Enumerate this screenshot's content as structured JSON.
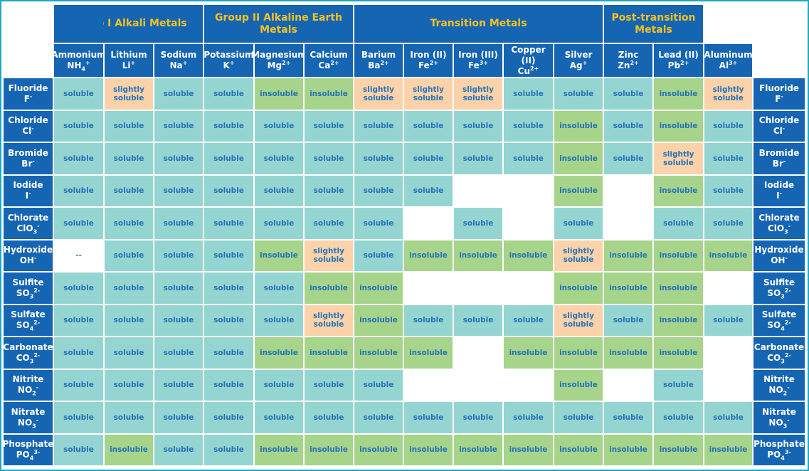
{
  "groups": [
    {
      "label": "Group I Alkali Metals",
      "span": [
        1,
        3
      ]
    },
    {
      "label": "Group II Alkaline Earth Metals",
      "span": [
        4,
        6
      ]
    },
    {
      "label": "Transition Metals",
      "span": [
        7,
        11
      ]
    },
    {
      "label": "Post-transition Metals",
      "span": [
        12,
        13
      ]
    }
  ],
  "cations": [
    {
      "name": "Ammonium",
      "sym": "NH",
      "sub": "4",
      "sup": "+"
    },
    {
      "name": "Lithium",
      "sym": "Li",
      "sub": "",
      "sup": "+"
    },
    {
      "name": "Sodium",
      "sym": "Na",
      "sub": "",
      "sup": "+"
    },
    {
      "name": "Potassium",
      "sym": "K",
      "sub": "",
      "sup": "+"
    },
    {
      "name": "Magnesium",
      "sym": "Mg",
      "sub": "",
      "sup": "2+"
    },
    {
      "name": "Calcium",
      "sym": "Ca",
      "sub": "",
      "sup": "2+"
    },
    {
      "name": "Barium",
      "sym": "Ba",
      "sub": "",
      "sup": "2+"
    },
    {
      "name": "Iron (II)",
      "sym": "Fe",
      "sub": "",
      "sup": "2+"
    },
    {
      "name": "Iron (III)",
      "sym": "Fe",
      "sub": "",
      "sup": "3+"
    },
    {
      "name": "Copper (II)",
      "sym": "Cu",
      "sub": "",
      "sup": "2+"
    },
    {
      "name": "Silver",
      "sym": "Ag",
      "sub": "",
      "sup": "+"
    },
    {
      "name": "Zinc",
      "sym": "Zn",
      "sub": "",
      "sup": "2+"
    },
    {
      "name": "Lead (II)",
      "sym": "Pb",
      "sub": "",
      "sup": "2+"
    },
    {
      "name": "Aluminum",
      "sym": "Al",
      "sub": "",
      "sup": "3+"
    }
  ],
  "anions": [
    {
      "name": "Fluoride",
      "sym": "F",
      "sub": "",
      "sup": "-"
    },
    {
      "name": "Chloride",
      "sym": "Cl",
      "sub": "",
      "sup": "-"
    },
    {
      "name": "Bromide",
      "sym": "Br",
      "sub": "",
      "sup": "-"
    },
    {
      "name": "Iodide",
      "sym": "I",
      "sub": "",
      "sup": "-"
    },
    {
      "name": "Chlorate",
      "sym": "ClO",
      "sub": "3",
      "sup": "-"
    },
    {
      "name": "Hydroxide",
      "sym": "OH",
      "sub": "",
      "sup": "-"
    },
    {
      "name": "Sulfite",
      "sym": "SO",
      "sub": "3",
      "sup": "2-"
    },
    {
      "name": "Sulfate",
      "sym": "SO",
      "sub": "4",
      "sup": "2-"
    },
    {
      "name": "Carbonate",
      "sym": "CO",
      "sub": "3",
      "sup": "2-"
    },
    {
      "name": "Nitrite",
      "sym": "NO",
      "sub": "2",
      "sup": "-"
    },
    {
      "name": "Nitrate",
      "sym": "NO",
      "sub": "3",
      "sup": "-"
    },
    {
      "name": "Phosphate",
      "sym": "PO",
      "sub": "4",
      "sup": "3-"
    }
  ],
  "labels": {
    "S": "soluble",
    "I": "insoluble",
    "P": "slightly soluble",
    "N": "--",
    "E": ""
  },
  "rows": [
    [
      "S",
      "P",
      "S",
      "S",
      "I",
      "I",
      "P",
      "P",
      "P",
      "S",
      "S",
      "S",
      "I",
      "P"
    ],
    [
      "S",
      "S",
      "S",
      "S",
      "S",
      "S",
      "S",
      "S",
      "S",
      "S",
      "I",
      "S",
      "I",
      "S"
    ],
    [
      "S",
      "S",
      "S",
      "S",
      "S",
      "S",
      "S",
      "S",
      "S",
      "S",
      "I",
      "S",
      "P",
      "S"
    ],
    [
      "S",
      "S",
      "S",
      "S",
      "S",
      "S",
      "S",
      "S",
      "E",
      "E",
      "I",
      "E",
      "I",
      "S"
    ],
    [
      "S",
      "S",
      "S",
      "S",
      "S",
      "S",
      "S",
      "E",
      "S",
      "E",
      "S",
      "E",
      "S",
      "S"
    ],
    [
      "N",
      "S",
      "S",
      "S",
      "I",
      "P",
      "S",
      "I",
      "I",
      "I",
      "P",
      "I",
      "I",
      "I"
    ],
    [
      "S",
      "S",
      "S",
      "S",
      "S",
      "I",
      "I",
      "E",
      "E",
      "E",
      "I",
      "I",
      "I",
      "E"
    ],
    [
      "S",
      "S",
      "S",
      "S",
      "S",
      "P",
      "I",
      "S",
      "S",
      "S",
      "P",
      "S",
      "I",
      "S"
    ],
    [
      "S",
      "S",
      "S",
      "S",
      "I",
      "I",
      "I",
      "I",
      "E",
      "I",
      "I",
      "I",
      "I",
      "E"
    ],
    [
      "S",
      "S",
      "S",
      "S",
      "S",
      "S",
      "S",
      "E",
      "E",
      "E",
      "I",
      "E",
      "S",
      "E"
    ],
    [
      "S",
      "S",
      "S",
      "S",
      "S",
      "S",
      "S",
      "S",
      "S",
      "S",
      "S",
      "S",
      "S",
      "S"
    ],
    [
      "S",
      "I",
      "S",
      "S",
      "I",
      "I",
      "I",
      "I",
      "I",
      "I",
      "I",
      "I",
      "I",
      "I"
    ]
  ],
  "colors": {
    "header": "#1565b3",
    "group_text": "#f7c21f",
    "soluble": "#95d5d1",
    "insoluble": "#a6d48a",
    "slightly": "#fbd2a9",
    "cell_text": "#2673b8",
    "border": "#1aa7c4"
  }
}
